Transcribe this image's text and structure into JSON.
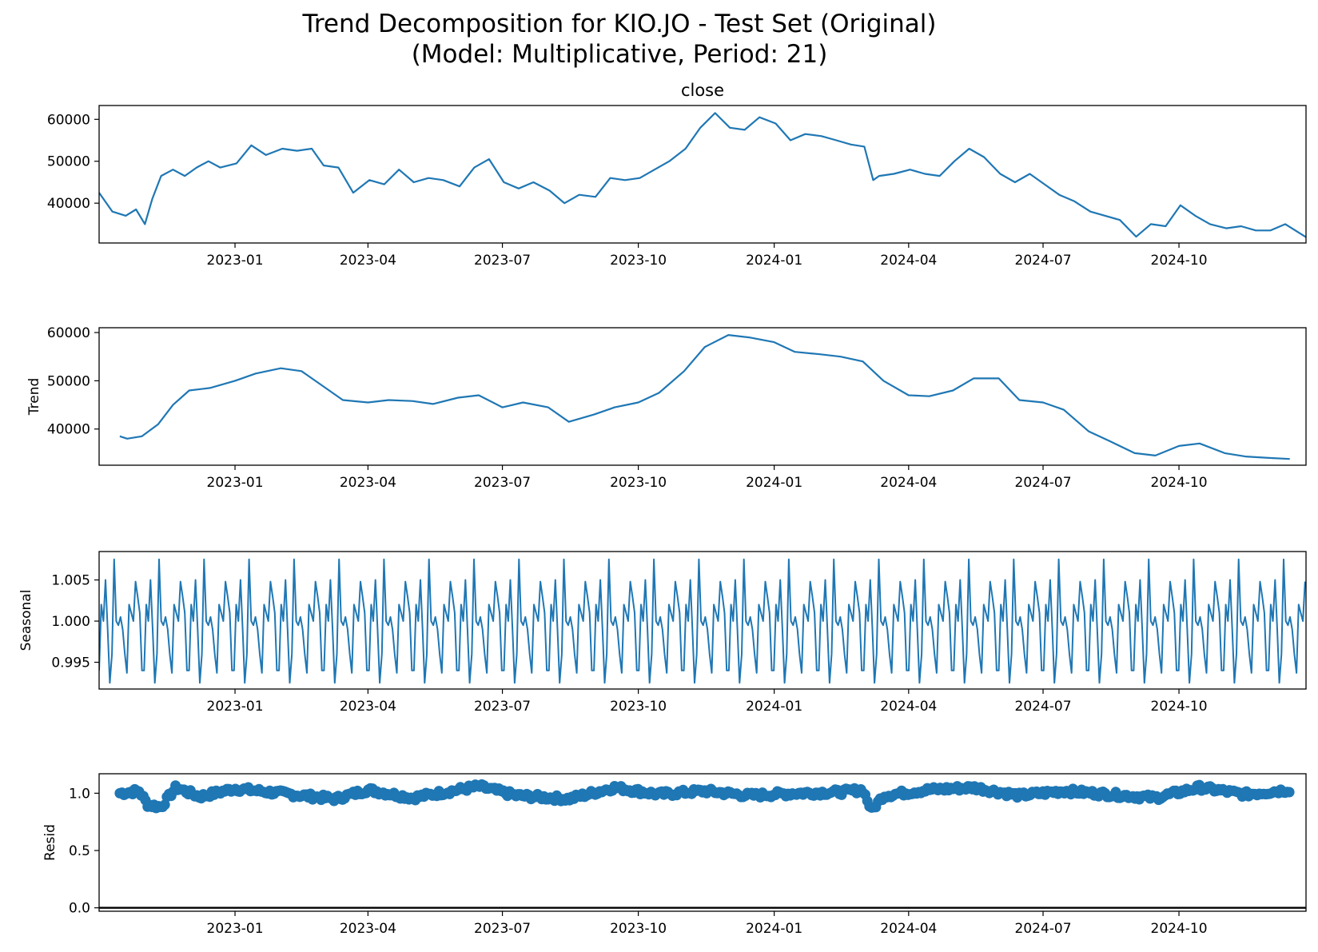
{
  "figure": {
    "title_line1": "Trend Decomposition for KIO.JO - Test Set (Original)",
    "title_line2": "(Model: Multiplicative, Period: 21)"
  },
  "colors": {
    "series": "#1f77b4",
    "axis": "#000000",
    "zero_line": "#000000"
  },
  "chart_data": [
    {
      "type": "line",
      "title": "close",
      "ylabel": "",
      "xlim": [
        "2022-10-01",
        "2024-12-26"
      ],
      "ylim": [
        30500,
        63300
      ],
      "yticks": [
        40000,
        50000,
        60000
      ],
      "xticks": [
        "2023-01",
        "2023-04",
        "2023-07",
        "2023-10",
        "2024-01",
        "2024-04",
        "2024-07",
        "2024-10"
      ],
      "series": [
        {
          "x": [
            "2022-10-01",
            "2022-10-10",
            "2022-10-19",
            "2022-10-26",
            "2022-11-01",
            "2022-11-06",
            "2022-11-12",
            "2022-11-20",
            "2022-11-28",
            "2022-12-06",
            "2022-12-14",
            "2022-12-22",
            "2023-01-02",
            "2023-01-12",
            "2023-01-22",
            "2023-02-02",
            "2023-02-12",
            "2023-02-22",
            "2023-03-02",
            "2023-03-12",
            "2023-03-22",
            "2023-04-02",
            "2023-04-12",
            "2023-04-22",
            "2023-05-02",
            "2023-05-12",
            "2023-05-22",
            "2023-06-02",
            "2023-06-12",
            "2023-06-22",
            "2023-07-02",
            "2023-07-12",
            "2023-07-22",
            "2023-08-02",
            "2023-08-12",
            "2023-08-22",
            "2023-09-02",
            "2023-09-12",
            "2023-09-22",
            "2023-10-02",
            "2023-10-12",
            "2023-10-22",
            "2023-11-02",
            "2023-11-12",
            "2023-11-22",
            "2023-12-02",
            "2023-12-12",
            "2023-12-22",
            "2024-01-02",
            "2024-01-12",
            "2024-01-22",
            "2024-02-02",
            "2024-02-12",
            "2024-02-22",
            "2024-03-02",
            "2024-03-08",
            "2024-03-12",
            "2024-03-22",
            "2024-04-02",
            "2024-04-12",
            "2024-04-22",
            "2024-05-02",
            "2024-05-12",
            "2024-05-22",
            "2024-06-02",
            "2024-06-12",
            "2024-06-22",
            "2024-07-02",
            "2024-07-12",
            "2024-07-22",
            "2024-08-02",
            "2024-08-12",
            "2024-08-22",
            "2024-09-02",
            "2024-09-12",
            "2024-09-22",
            "2024-10-02",
            "2024-10-12",
            "2024-10-22",
            "2024-11-02",
            "2024-11-12",
            "2024-11-22",
            "2024-12-02",
            "2024-12-12",
            "2024-12-26"
          ],
          "y": [
            42500,
            38000,
            37000,
            38500,
            35000,
            41000,
            46500,
            48000,
            46500,
            48500,
            50000,
            48500,
            49500,
            53800,
            51500,
            53000,
            52500,
            53000,
            49000,
            48500,
            42500,
            45500,
            44500,
            48000,
            45000,
            46000,
            45500,
            44000,
            48500,
            50500,
            45000,
            43500,
            45000,
            43000,
            40000,
            42000,
            41500,
            46000,
            45500,
            46000,
            48000,
            50000,
            53000,
            58000,
            61500,
            58000,
            57500,
            60500,
            59000,
            55000,
            56500,
            56000,
            55000,
            54000,
            53500,
            45500,
            46500,
            47000,
            48000,
            47000,
            46500,
            50000,
            53000,
            51000,
            47000,
            45000,
            47000,
            44500,
            42000,
            40500,
            38000,
            37000,
            36000,
            32000,
            35000,
            34500,
            39500,
            37000,
            35000,
            34000,
            34500,
            33500,
            33500,
            35000,
            31900
          ]
        }
      ]
    },
    {
      "type": "line",
      "title": "",
      "ylabel": "Trend",
      "xlim": [
        "2022-10-01",
        "2024-12-26"
      ],
      "ylim": [
        32500,
        61000
      ],
      "yticks": [
        40000,
        50000,
        60000
      ],
      "xticks": [
        "2023-01",
        "2023-04",
        "2023-07",
        "2023-10",
        "2024-01",
        "2024-04",
        "2024-07",
        "2024-10"
      ],
      "series": [
        {
          "x": [
            "2022-10-15",
            "2022-10-20",
            "2022-10-30",
            "2022-11-10",
            "2022-11-20",
            "2022-12-01",
            "2022-12-15",
            "2023-01-01",
            "2023-01-15",
            "2023-02-01",
            "2023-02-15",
            "2023-03-01",
            "2023-03-15",
            "2023-04-01",
            "2023-04-15",
            "2023-05-01",
            "2023-05-15",
            "2023-06-01",
            "2023-06-15",
            "2023-07-01",
            "2023-07-15",
            "2023-08-01",
            "2023-08-15",
            "2023-09-01",
            "2023-09-15",
            "2023-10-01",
            "2023-10-15",
            "2023-11-01",
            "2023-11-15",
            "2023-12-01",
            "2023-12-15",
            "2024-01-01",
            "2024-01-15",
            "2024-02-01",
            "2024-02-15",
            "2024-03-01",
            "2024-03-15",
            "2024-04-01",
            "2024-04-15",
            "2024-05-01",
            "2024-05-15",
            "2024-06-01",
            "2024-06-15",
            "2024-07-01",
            "2024-07-15",
            "2024-08-01",
            "2024-08-15",
            "2024-09-01",
            "2024-09-15",
            "2024-10-01",
            "2024-10-15",
            "2024-11-01",
            "2024-11-15",
            "2024-12-01",
            "2024-12-15"
          ],
          "y": [
            38500,
            38000,
            38500,
            41000,
            45000,
            48000,
            48500,
            50000,
            51500,
            52600,
            52000,
            49000,
            46000,
            45500,
            46000,
            45800,
            45200,
            46500,
            47000,
            44500,
            45500,
            44500,
            41500,
            43000,
            44500,
            45500,
            47500,
            52000,
            57000,
            59500,
            59000,
            58000,
            56000,
            55500,
            55000,
            54000,
            50000,
            47000,
            46800,
            48000,
            50500,
            50500,
            46000,
            45500,
            44000,
            39500,
            37500,
            35000,
            34500,
            36500,
            37000,
            35000,
            34300,
            34000,
            33800
          ]
        }
      ]
    },
    {
      "type": "line",
      "title": "",
      "ylabel": "Seasonal",
      "period": 21,
      "xlim": [
        "2022-10-01",
        "2024-12-26"
      ],
      "ylim": [
        0.99175,
        1.00845
      ],
      "yticks": [
        0.995,
        1.0,
        1.005
      ],
      "xticks": [
        "2023-01",
        "2023-04",
        "2023-07",
        "2023-10",
        "2024-01",
        "2024-04",
        "2024-07",
        "2024-10"
      ],
      "start": "2022-10-01",
      "end": "2024-12-26",
      "pattern": [
        0.994,
        1.002,
        1.0,
        1.005,
        0.999,
        0.9925,
        0.996,
        1.0075,
        1.0,
        0.9995,
        1.0005,
        0.999,
        0.996,
        0.9937,
        1.002,
        1.001,
        1.0,
        1.0048,
        1.003,
        1.001,
        0.994
      ]
    },
    {
      "type": "scatter",
      "title": "",
      "ylabel": "Resid",
      "xlim": [
        "2022-10-01",
        "2024-12-26"
      ],
      "ylim": [
        -0.03,
        1.17
      ],
      "yticks": [
        0.0,
        0.5,
        1.0
      ],
      "xticks": [
        "2023-01",
        "2023-04",
        "2023-07",
        "2023-10",
        "2024-01",
        "2024-04",
        "2024-07",
        "2024-10"
      ],
      "start": "2022-10-15",
      "end": "2024-12-15",
      "reference_line": 0,
      "anchors": {
        "x": [
          "2022-10-15",
          "2022-10-28",
          "2022-11-03",
          "2022-11-12",
          "2022-11-22",
          "2022-12-08",
          "2023-01-01",
          "2023-02-01",
          "2023-03-10",
          "2023-04-01",
          "2023-05-01",
          "2023-06-15",
          "2023-07-10",
          "2023-08-15",
          "2023-09-15",
          "2023-10-15",
          "2023-11-15",
          "2023-12-15",
          "2024-01-15",
          "2024-02-15",
          "2024-03-01",
          "2024-03-07",
          "2024-03-15",
          "2024-04-15",
          "2024-05-15",
          "2024-06-15",
          "2024-07-15",
          "2024-08-15",
          "2024-09-15",
          "2024-10-15",
          "2024-11-15",
          "2024-12-15"
        ],
        "y": [
          1.0,
          1.02,
          0.9,
          0.88,
          1.05,
          0.97,
          1.04,
          1.0,
          0.95,
          1.03,
          0.96,
          1.06,
          0.98,
          0.95,
          1.05,
          0.99,
          1.02,
          0.98,
          1.0,
          1.01,
          1.03,
          0.85,
          0.98,
          1.03,
          1.05,
          0.98,
          1.02,
          0.99,
          0.96,
          1.05,
          0.99,
          1.03
        ]
      }
    }
  ]
}
